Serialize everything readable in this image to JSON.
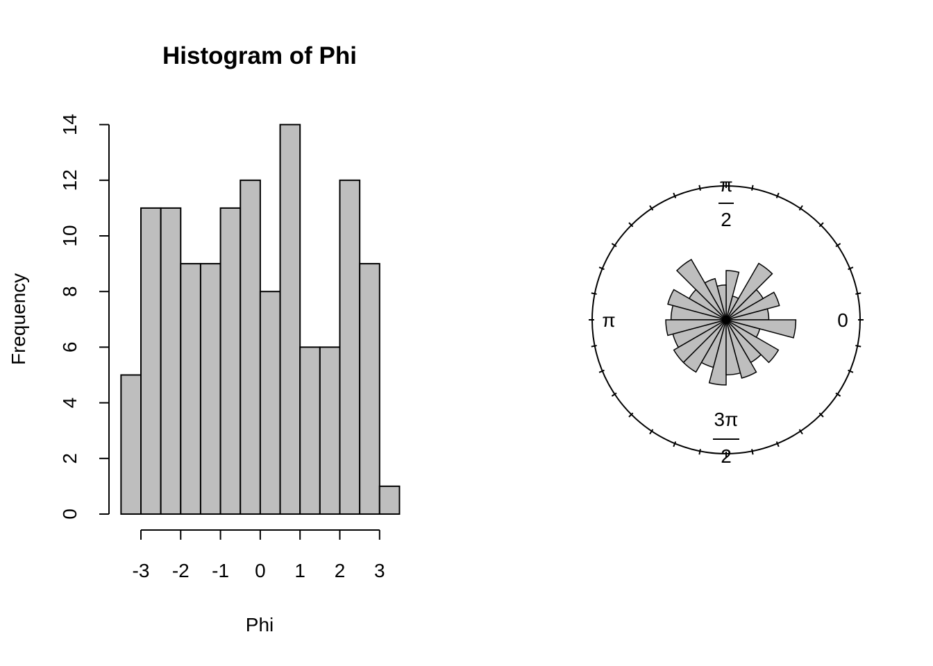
{
  "chart_data": [
    {
      "type": "bar",
      "title": "Histogram of Phi",
      "xlabel": "Phi",
      "ylabel": "Frequency",
      "bin_edges": [
        -3.5,
        -3.0,
        -2.5,
        -2.0,
        -1.5,
        -1.0,
        -0.5,
        0.0,
        0.5,
        1.0,
        1.5,
        2.0,
        2.5,
        3.0,
        3.5
      ],
      "values": [
        5,
        11,
        11,
        9,
        9,
        11,
        12,
        8,
        14,
        6,
        6,
        12,
        9,
        1
      ],
      "xticks": [
        -3,
        -2,
        -1,
        0,
        1,
        2,
        3
      ],
      "xtick_labels": [
        "-3",
        "-2",
        "-1",
        "0",
        "1",
        "2",
        "3"
      ],
      "xlim": [
        -3,
        3
      ],
      "yticks": [
        0,
        2,
        4,
        6,
        8,
        10,
        12,
        14
      ],
      "ytick_labels": [
        "0",
        "2",
        "4",
        "6",
        "8",
        "10",
        "12",
        "14"
      ],
      "ylim": [
        0,
        14
      ],
      "grid": false
    },
    {
      "type": "rose",
      "direction_labels": {
        "east": "0",
        "north_top": "π",
        "north_bottom": "2",
        "west": "π",
        "south_top": "3π",
        "south_bottom": "2"
      },
      "sectors": 24,
      "sector_counts": [
        3,
        5,
        3,
        7,
        1,
        4,
        2,
        3,
        8,
        3,
        6,
        5,
        6,
        5,
        6,
        6,
        4,
        7,
        5,
        6,
        4,
        6,
        2,
        8
      ],
      "tick_count": 32,
      "grid": false
    }
  ]
}
